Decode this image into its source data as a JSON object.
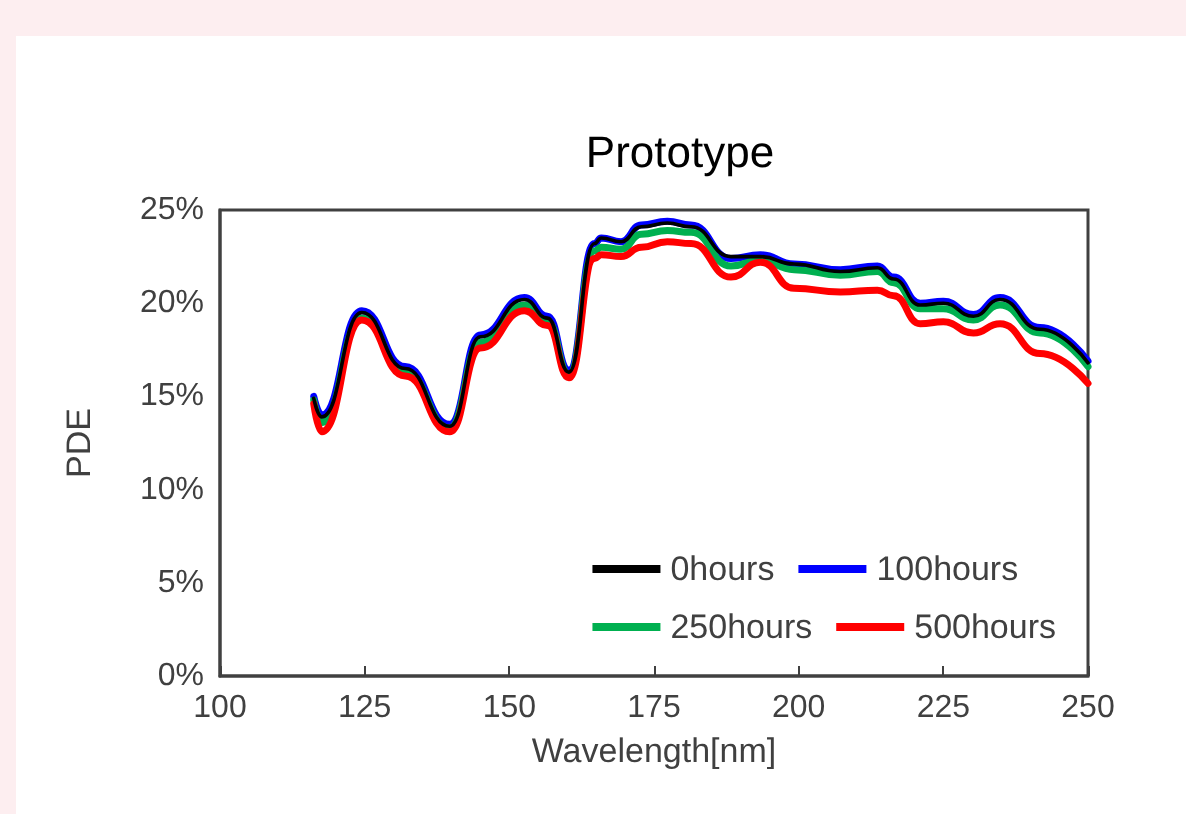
{
  "chart_data": {
    "type": "line",
    "title": "Prototype",
    "xlabel": "Wavelength[nm]",
    "ylabel": "PDE",
    "x": [
      116.2,
      117.6,
      124.5,
      132,
      139.7,
      145,
      152.6,
      156.6,
      160.3,
      164.7,
      165.9,
      169.3,
      172.8,
      177.3,
      181.4,
      188.3,
      193.4,
      199.2,
      207.2,
      213.6,
      216.4,
      221,
      225,
      230.2,
      234.8,
      241.7,
      250
    ],
    "series": [
      {
        "name": "0hours",
        "color": "#000000",
        "values": [
          14.9,
          13.9,
          19.5,
          16.5,
          13.4,
          18.2,
          20.2,
          19.2,
          16.3,
          23.2,
          23.5,
          23.3,
          24.1,
          24.3,
          24.1,
          22.5,
          22.5,
          22.1,
          21.7,
          21.9,
          21.3,
          19.9,
          20.0,
          19.3,
          20.2,
          18.6,
          16.8
        ]
      },
      {
        "name": "100hours",
        "color": "#0000ff",
        "values": [
          15.0,
          14.0,
          19.6,
          16.6,
          13.5,
          18.3,
          20.3,
          19.3,
          16.4,
          23.2,
          23.5,
          23.3,
          24.2,
          24.4,
          24.2,
          22.4,
          22.6,
          22.1,
          21.8,
          22.0,
          21.4,
          20.0,
          20.1,
          19.4,
          20.3,
          18.7,
          16.9
        ]
      },
      {
        "name": "250hours",
        "color": "#00b050",
        "values": [
          14.8,
          13.6,
          19.2,
          16.3,
          13.3,
          17.9,
          19.9,
          19.0,
          16.2,
          22.8,
          23.0,
          22.9,
          23.7,
          23.9,
          23.8,
          22.0,
          22.3,
          21.8,
          21.5,
          21.7,
          21.1,
          19.7,
          19.7,
          19.1,
          19.9,
          18.4,
          16.6
        ]
      },
      {
        "name": "500hours",
        "color": "#ff0000",
        "values": [
          14.6,
          13.1,
          19.1,
          16.1,
          13.1,
          17.6,
          19.6,
          18.8,
          16.0,
          22.4,
          22.6,
          22.5,
          23.0,
          23.3,
          23.2,
          21.4,
          22.2,
          20.8,
          20.6,
          20.7,
          20.4,
          18.9,
          19.0,
          18.4,
          18.9,
          17.3,
          15.7
        ]
      }
    ],
    "xlim": [
      100,
      250
    ],
    "xticks": [
      100,
      125,
      150,
      175,
      200,
      225,
      250
    ],
    "ylim": [
      0,
      25
    ],
    "yticks": [
      {
        "value": 0,
        "label": "0%"
      },
      {
        "value": 5,
        "label": "5%"
      },
      {
        "value": 10,
        "label": "10%"
      },
      {
        "value": 15,
        "label": "15%"
      },
      {
        "value": 20,
        "label": "20%"
      },
      {
        "value": 25,
        "label": "25%"
      }
    ],
    "grid": false,
    "legend": "bottom right",
    "marker": "none",
    "line_style": "solid"
  }
}
